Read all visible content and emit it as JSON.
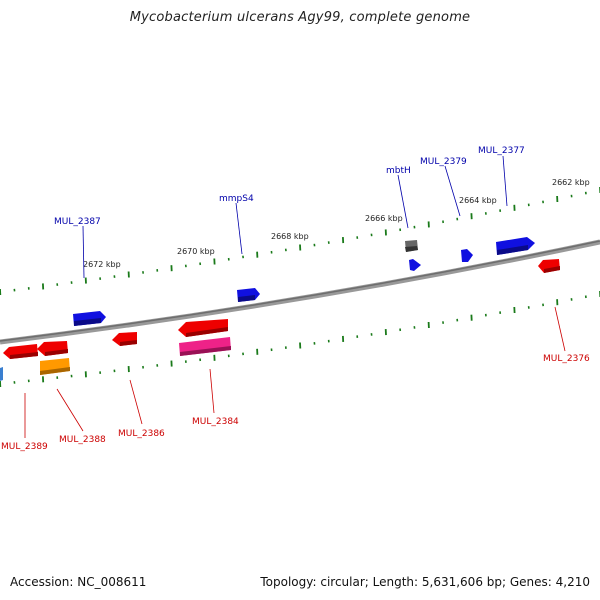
{
  "title": "Mycobacterium ulcerans Agy99, complete genome",
  "footer": {
    "accession": "Accession: NC_008611",
    "topology": "Topology: circular; Length: 5,631,606 bp; Genes: 4,210"
  },
  "colors": {
    "backbone": "#808080",
    "tick": "#1a7a1a",
    "forward_label": "#0000aa",
    "reverse_label": "#cc0000",
    "gene_blue": "#1010e0",
    "gene_red": "#ee0000",
    "gene_pink": "#ee2288",
    "gene_orange": "#ff9900",
    "gene_gray": "#666666"
  },
  "kbp_labels": [
    "2672 kbp",
    "2670 kbp",
    "2668 kbp",
    "2666 kbp",
    "2664 kbp",
    "2662 kbp"
  ],
  "forward_genes": [
    "MUL_2387",
    "mmpS4",
    "mbtH",
    "MUL_2379",
    "MUL_2377"
  ],
  "reverse_genes": [
    "MUL_2389",
    "MUL_2388",
    "MUL_2386",
    "MUL_2384",
    "MUL_2376"
  ]
}
